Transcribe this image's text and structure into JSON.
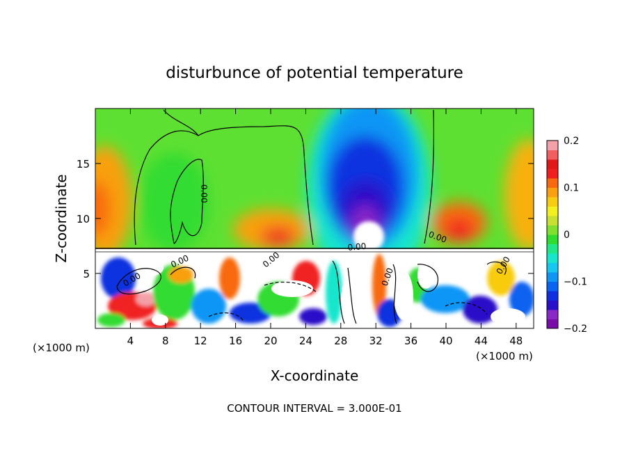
{
  "chart_data": {
    "type": "heatmap",
    "title": "disturbunce of potential temperature",
    "xlabel": "X-coordinate",
    "ylabel": "Z-coordinate",
    "x_unit_left": "(×1000 m)",
    "x_unit_right": "(×1000 m)",
    "footer": "CONTOUR INTERVAL = 3.000E-01",
    "xlim": [
      0,
      50
    ],
    "ylim": [
      0,
      20
    ],
    "x_ticks": [
      4,
      8,
      12,
      16,
      20,
      24,
      28,
      32,
      36,
      40,
      44,
      48
    ],
    "y_ticks": [
      5,
      10,
      15
    ],
    "colorbar": {
      "range": [
        -0.2,
        0.2
      ],
      "tick_values": [
        0.2,
        0.1,
        0,
        -0.1,
        -0.2
      ],
      "tick_labels": [
        "0.2",
        "0.1",
        "0",
        "−0.1",
        "−0.2"
      ],
      "colors": [
        "#7a0ca8",
        "#8a28c8",
        "#2a10c8",
        "#1030e0",
        "#0a64f0",
        "#0f96f5",
        "#16c8f0",
        "#18e6cc",
        "#20e888",
        "#30dc30",
        "#80e030",
        "#c8e030",
        "#f4f020",
        "#f8cc10",
        "#f8a010",
        "#f86a10",
        "#f02020",
        "#e01818",
        "#f06060",
        "#f4a0a8"
      ]
    },
    "contour_labels": [
      "0.00",
      "0.00",
      "0.00",
      "0.00",
      "0.00",
      "0.00",
      "0.00",
      "0.00"
    ]
  },
  "colors": {
    "background": "#ffffff",
    "warm_blob": "#f86a10",
    "cold_core": "#2a10c8",
    "neutral": "#30dc30"
  }
}
